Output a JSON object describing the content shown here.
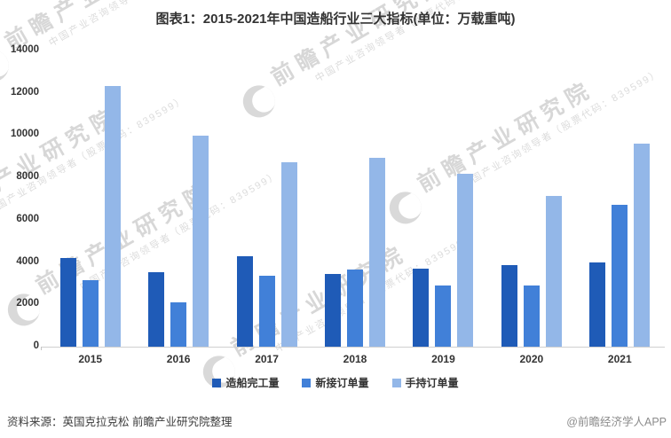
{
  "title": "图表1：2015-2021年中国造船行业三大指标(单位：万载重吨)",
  "source_note": "资料来源：英国克拉克松 前瞻产业研究院整理",
  "credit": "@前瞻经济学人APP",
  "watermark": {
    "brand": "前瞻产业研究院",
    "tagline": "中国产业咨询领导者（股票代码：839599）"
  },
  "colors": {
    "title_text": "#333333",
    "axis_text": "#333333",
    "axis_line": "#d0d0d0",
    "source_text": "#3d3d3d",
    "credit_text": "#8c8c8c",
    "watermark": "#d7d7d7"
  },
  "chart_data": {
    "type": "bar",
    "title": "图表1：2015-2021年中国造船行业三大指标(单位：万载重吨)",
    "xlabel": "",
    "ylabel": "万载重吨",
    "categories": [
      "2015",
      "2016",
      "2017",
      "2018",
      "2019",
      "2020",
      "2021"
    ],
    "series": [
      {
        "name": "造船完工量",
        "color": "#1f5bb7",
        "values": [
          4184,
          3532,
          4268,
          3458,
          3672,
          3853,
          3970
        ]
      },
      {
        "name": "新接订单量",
        "color": "#4180d8",
        "values": [
          3126,
          2107,
          3373,
          3667,
          2907,
          2893,
          6707
        ]
      },
      {
        "name": "手持订单量",
        "color": "#93b7e8",
        "values": [
          12304,
          9961,
          8723,
          8931,
          8166,
          7111,
          9584
        ]
      }
    ],
    "ylim": [
      0,
      14000
    ],
    "y_ticks": [
      0,
      2000,
      4000,
      6000,
      8000,
      10000,
      12000,
      14000
    ],
    "grid": false,
    "legend_position": "bottom"
  }
}
